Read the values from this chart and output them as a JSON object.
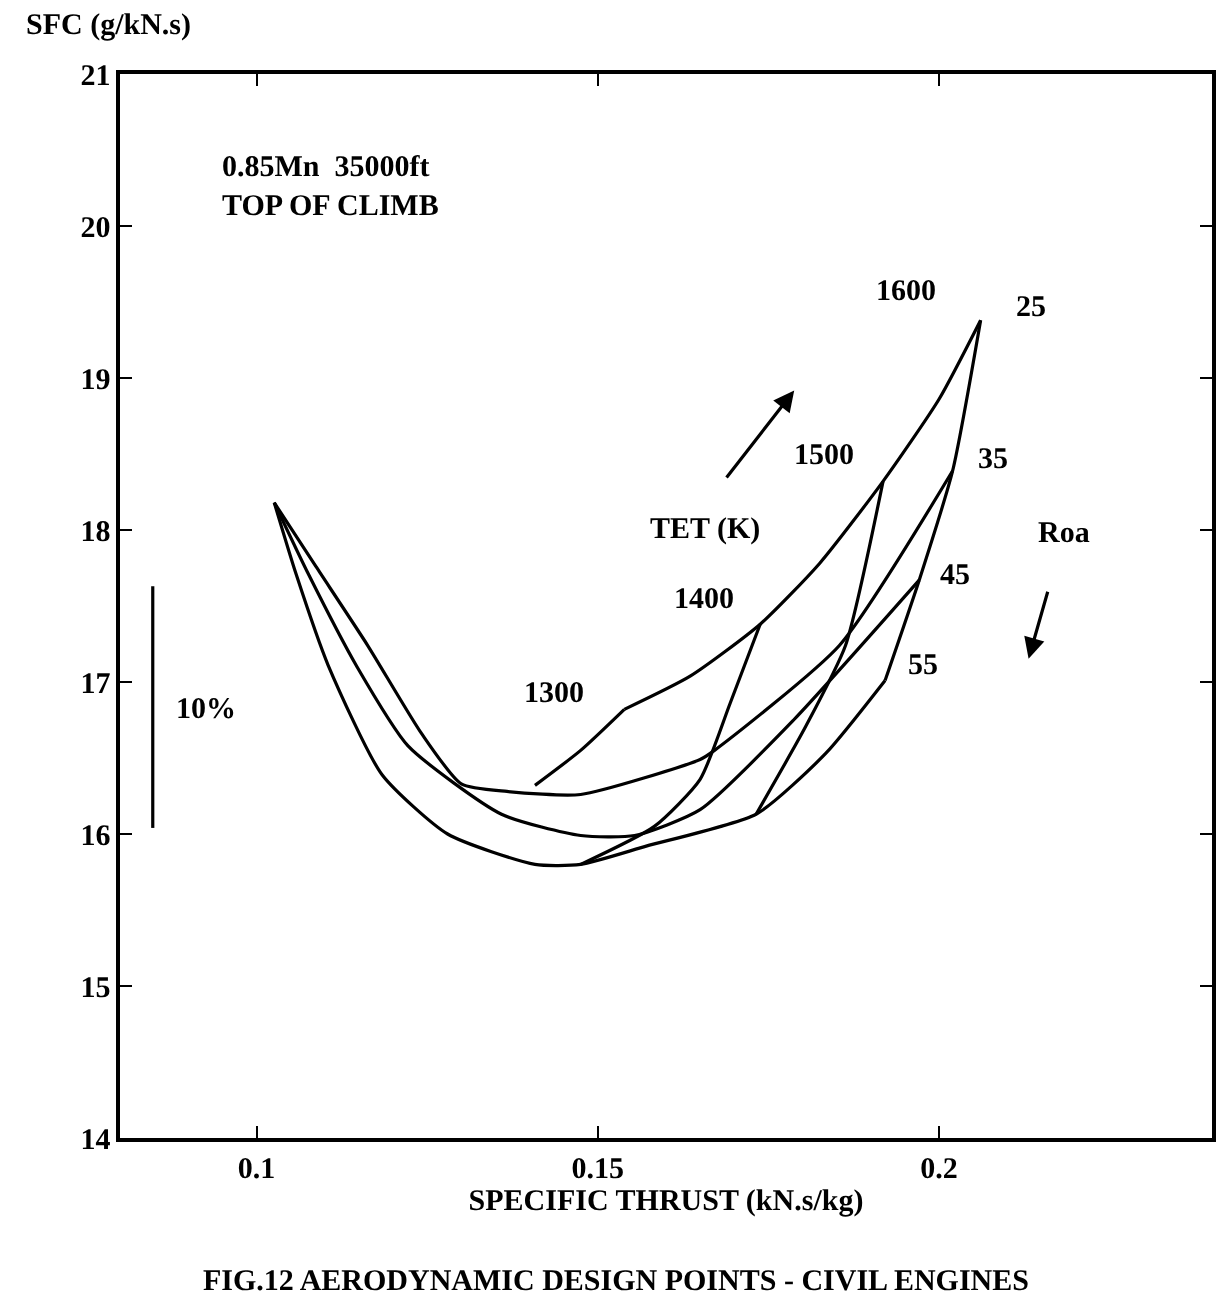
{
  "chart_data": {
    "type": "line",
    "title": "FIG.12 AERODYNAMIC DESIGN POINTS - CIVIL ENGINES",
    "xlabel": "SPECIFIC THRUST (kN.s/kg)",
    "ylabel": "SFC (g/kN.s)",
    "xlim": [
      0.08,
      0.24
    ],
    "xticks": [
      0.1,
      0.15,
      0.2
    ],
    "ylim": [
      14,
      21
    ],
    "yticks": [
      14,
      15,
      16,
      17,
      18,
      19,
      20,
      21
    ],
    "marker": "none",
    "line_style": "solid",
    "series": [
      {
        "color": "#000000",
        "x": [
          0.1539,
          0.1636,
          0.1738,
          0.1825,
          0.1918,
          0.2,
          0.2061
        ],
        "values": [
          16.82,
          17.04,
          17.38,
          17.78,
          18.32,
          18.86,
          19.38
        ]
      },
      {
        "color": "#000000",
        "x": [
          0.1026,
          0.1087,
          0.1163,
          0.1242,
          0.13,
          0.1367,
          0.1475,
          0.165,
          0.1671,
          0.1854,
          0.202
        ],
        "values": [
          18.18,
          17.76,
          17.24,
          16.66,
          16.33,
          16.28,
          16.26,
          16.49,
          16.55,
          17.24,
          18.39
        ]
      },
      {
        "color": "#000000",
        "x": [
          0.1026,
          0.1076,
          0.1146,
          0.1222,
          0.1359,
          0.1475,
          0.1554,
          0.165,
          0.1787,
          0.1971
        ],
        "values": [
          18.18,
          17.71,
          17.11,
          16.58,
          16.13,
          15.99,
          15.99,
          16.16,
          16.75,
          17.67
        ]
      },
      {
        "color": "#000000",
        "x": [
          0.1026,
          0.1058,
          0.1105,
          0.1184,
          0.128,
          0.1408,
          0.1475,
          0.1571,
          0.1732,
          0.1834,
          0.1921
        ],
        "values": [
          18.18,
          17.71,
          17.11,
          16.39,
          16.0,
          15.8,
          15.8,
          15.92,
          16.13,
          16.53,
          17.01
        ]
      },
      {
        "color": "#000000",
        "x": [
          0.1539,
          0.1475,
          0.1408
        ],
        "values": [
          16.82,
          16.55,
          16.32
        ]
      },
      {
        "color": "#000000",
        "x": [
          0.1738,
          0.1694,
          0.165,
          0.1583,
          0.1475
        ],
        "values": [
          17.38,
          16.86,
          16.36,
          16.05,
          15.8
        ]
      },
      {
        "color": "#000000",
        "x": [
          0.1918,
          0.1863,
          0.1805,
          0.1732
        ],
        "values": [
          18.32,
          17.24,
          16.71,
          16.13
        ]
      },
      {
        "color": "#000000",
        "x": [
          0.2061,
          0.202,
          0.1971,
          0.1921
        ],
        "values": [
          19.38,
          18.39,
          17.67,
          17.01
        ]
      },
      {
        "color": "#000000",
        "x": [
          0.0848,
          0.0848
        ],
        "values": [
          16.04,
          17.63
        ]
      }
    ],
    "annotations": [
      "0.85Mn  35000ft\nTOP OF CLIMB",
      "1300",
      "1400",
      "1500",
      "1600",
      "25",
      "35",
      "45",
      "55",
      "TET (K)",
      "Roa",
      "10%"
    ]
  }
}
